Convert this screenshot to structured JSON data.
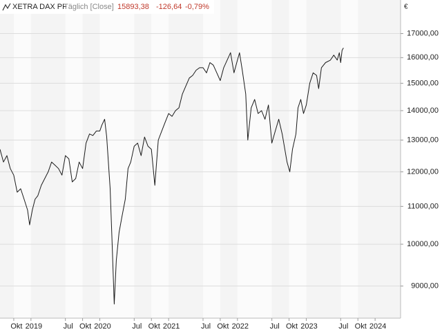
{
  "chart_data": {
    "type": "line",
    "title": "XETRA DAX PF",
    "subtitle": "Täglich [Close]",
    "last_value": "15893,38",
    "change": "-126,64",
    "change_pct": "-0,79%",
    "y_unit": "€",
    "log_scale": true,
    "grid": true,
    "xlim": [
      2018.55,
      2024.37
    ],
    "ylim": [
      8300,
      18500
    ],
    "yticks": [
      {
        "value": 9000,
        "label": "9000,00"
      },
      {
        "value": 10000,
        "label": "10000,00"
      },
      {
        "value": 11000,
        "label": "11000,00"
      },
      {
        "value": 12000,
        "label": "12000,00"
      },
      {
        "value": 13000,
        "label": "13000,00"
      },
      {
        "value": 14000,
        "label": "14000,00"
      },
      {
        "value": 15000,
        "label": "15000,00"
      },
      {
        "value": 16000,
        "label": "16000,00"
      },
      {
        "value": 17000,
        "label": "17000,00"
      }
    ],
    "xticks": [
      {
        "value": 2018.75,
        "label": "Okt"
      },
      2019,
      {
        "value": 2019.5,
        "label": "Jul"
      },
      {
        "value": 2019.75,
        "label": "Okt"
      },
      2020,
      {
        "value": 2020.5,
        "label": "Jul"
      },
      {
        "value": 2020.75,
        "label": "Okt"
      },
      2021,
      {
        "value": 2021.5,
        "label": "Jul"
      },
      {
        "value": 2021.75,
        "label": "Okt"
      },
      2022,
      {
        "value": 2022.5,
        "label": "Jul"
      },
      {
        "value": 2022.75,
        "label": "Okt"
      },
      2023,
      {
        "value": 2023.5,
        "label": "Jul"
      },
      {
        "value": 2023.75,
        "label": "Okt"
      },
      2024
    ],
    "series": [
      {
        "name": "XETRA DAX PF",
        "color": "#1a1a1a",
        "x": [
          2018.55,
          2018.6,
          2018.65,
          2018.7,
          2018.75,
          2018.8,
          2018.85,
          2018.9,
          2018.95,
          2018.98,
          2019.02,
          2019.06,
          2019.1,
          2019.15,
          2019.2,
          2019.25,
          2019.3,
          2019.35,
          2019.4,
          2019.45,
          2019.5,
          2019.55,
          2019.6,
          2019.65,
          2019.7,
          2019.75,
          2019.8,
          2019.85,
          2019.9,
          2019.95,
          2020.0,
          2020.03,
          2020.07,
          2020.1,
          2020.15,
          2020.18,
          2020.21,
          2020.24,
          2020.28,
          2020.32,
          2020.37,
          2020.41,
          2020.45,
          2020.5,
          2020.55,
          2020.6,
          2020.65,
          2020.7,
          2020.75,
          2020.8,
          2020.85,
          2020.9,
          2020.95,
          2021.0,
          2021.05,
          2021.1,
          2021.15,
          2021.2,
          2021.3,
          2021.35,
          2021.4,
          2021.45,
          2021.5,
          2021.55,
          2021.6,
          2021.65,
          2021.7,
          2021.75,
          2021.8,
          2021.85,
          2021.9,
          2021.95,
          2022.0,
          2022.03,
          2022.07,
          2022.12,
          2022.15,
          2022.2,
          2022.25,
          2022.3,
          2022.35,
          2022.4,
          2022.45,
          2022.5,
          2022.55,
          2022.6,
          2022.65,
          2022.72,
          2022.76,
          2022.8,
          2022.85,
          2022.88,
          2022.92,
          2022.96,
          2023.0,
          2023.05,
          2023.1,
          2023.15,
          2023.18,
          2023.22,
          2023.28,
          2023.35,
          2023.4,
          2023.45,
          2023.48,
          2023.5,
          2023.52,
          2023.54
        ],
        "values": [
          12700,
          12300,
          12500,
          12100,
          11900,
          11400,
          11500,
          11200,
          10900,
          10500,
          10900,
          11200,
          11300,
          11600,
          11800,
          12000,
          12300,
          12200,
          12100,
          11900,
          12500,
          12400,
          11700,
          11800,
          12300,
          12100,
          12900,
          13200,
          13150,
          13300,
          13300,
          13500,
          13700,
          13100,
          11500,
          10000,
          8600,
          9600,
          10300,
          10700,
          11200,
          12100,
          12300,
          12800,
          12900,
          12500,
          13100,
          12800,
          12700,
          11600,
          13000,
          13300,
          13600,
          13900,
          13800,
          14000,
          14100,
          14600,
          15200,
          15300,
          15500,
          15600,
          15600,
          15400,
          15800,
          15700,
          15400,
          15100,
          15600,
          15900,
          16200,
          15400,
          15900,
          16200,
          15500,
          14600,
          13000,
          14100,
          14400,
          13900,
          14000,
          13700,
          14200,
          12900,
          13300,
          13700,
          13200,
          12300,
          12000,
          12700,
          13200,
          14100,
          14400,
          13900,
          14200,
          15000,
          15400,
          15300,
          14800,
          15600,
          15800,
          15900,
          16100,
          15900,
          16200,
          15800,
          16300,
          16400
        ]
      }
    ]
  }
}
